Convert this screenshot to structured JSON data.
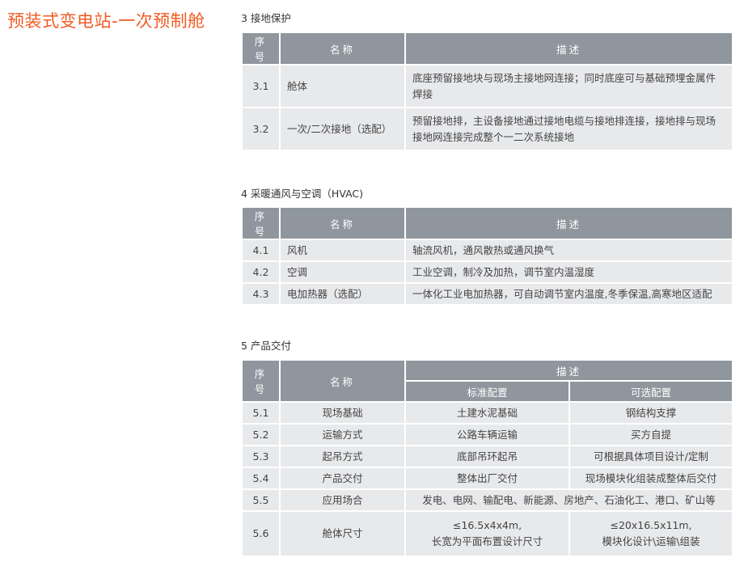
{
  "page_title": "预装式变电站-一次预制舱",
  "colors": {
    "title": "#f05a22",
    "header_bg": "#8f969d",
    "row_bg": "#e8e9eb"
  },
  "section3": {
    "title": "3 接地保护",
    "headers": [
      "序号",
      "名称",
      "描述"
    ],
    "rows": [
      {
        "no": "3.1",
        "name": "舱体",
        "desc": "底座预留接地块与现场主接地网连接；同时底座可与基础预埋金属件焊接"
      },
      {
        "no": "3.2",
        "name": "一次/二次接地（选配）",
        "desc": "预留接地排，主设备接地通过接地电缆与接地排连接，接地排与现场接地网连接完成整个一二次系统接地"
      }
    ]
  },
  "section4": {
    "title": "4 采暖通风与空调（HVAC)",
    "headers": [
      "序号",
      "名称",
      "描述"
    ],
    "rows": [
      {
        "no": "4.1",
        "name": "风机",
        "desc": "轴流风机，通风散热或通风换气"
      },
      {
        "no": "4.2",
        "name": "空调",
        "desc": "工业空调，制冷及加热，调节室内温湿度"
      },
      {
        "no": "4.3",
        "name": "电加热器（选配）",
        "desc": "一体化工业电加热器，可自动调节室内温度,冬季保温,高寒地区适配"
      }
    ]
  },
  "section5": {
    "title": "5 产品交付",
    "headers": [
      "序号",
      "名称",
      "描述"
    ],
    "subheaders": [
      "标准配置",
      "可选配置"
    ],
    "rows": [
      {
        "no": "5.1",
        "name": "现场基础",
        "std": "土建水泥基础",
        "opt": "钢结构支撑"
      },
      {
        "no": "5.2",
        "name": "运输方式",
        "std": "公路车辆运输",
        "opt": "买方自提"
      },
      {
        "no": "5.3",
        "name": "起吊方式",
        "std": "底部吊环起吊",
        "opt": "可根据具体项目设计/定制"
      },
      {
        "no": "5.4",
        "name": "产品交付",
        "std": "整体出厂交付",
        "opt": "现场模块化组装成整体后交付"
      },
      {
        "no": "5.5",
        "name": "应用场合",
        "merged": "发电、电网、输配电、新能源、房地产、石油化工、港口、矿山等"
      },
      {
        "no": "5.6",
        "name": "舱体尺寸",
        "std": "≤16.5x4x4m,",
        "std2": "长宽为平面布置设计尺寸",
        "opt": "≤20x16.5x11m,",
        "opt2": "模块化设计\\运输\\组装"
      }
    ]
  }
}
